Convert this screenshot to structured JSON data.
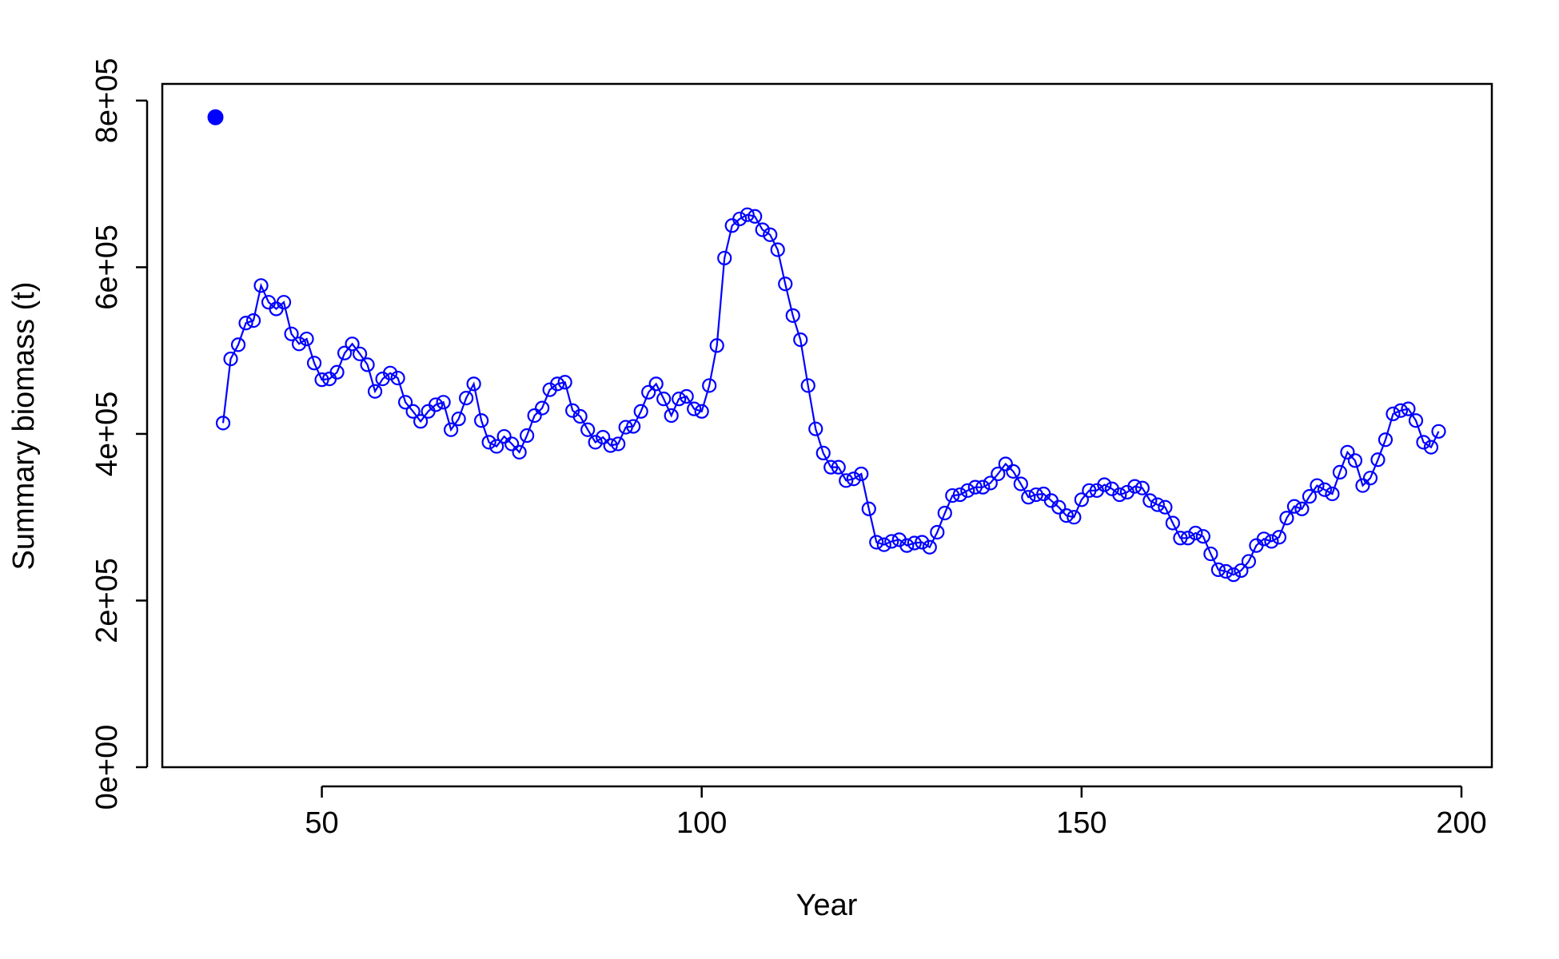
{
  "chart_data": {
    "type": "line",
    "xlabel": "Year",
    "ylabel": "Summary biomass (t)",
    "xlim": [
      29,
      204
    ],
    "ylim": [
      0,
      820000
    ],
    "x_ticks": [
      50,
      100,
      150,
      200
    ],
    "x_tick_labels": [
      "50",
      "100",
      "150",
      "200"
    ],
    "y_ticks": [
      0,
      200000,
      400000,
      600000,
      800000
    ],
    "y_tick_labels": [
      "0e+00",
      "2e+05",
      "4e+05",
      "6e+05",
      "8e+05"
    ],
    "grid": false,
    "legend": "none",
    "color": "#0000ff",
    "series": [
      {
        "marker": "filled-circle",
        "points": [
          [
            36,
            780000
          ]
        ]
      },
      {
        "marker": "open-circle",
        "line": true,
        "points": [
          [
            37,
            413000
          ],
          [
            38,
            490000
          ],
          [
            39,
            507000
          ],
          [
            40,
            533000
          ],
          [
            41,
            536000
          ],
          [
            42,
            578000
          ],
          [
            43,
            558000
          ],
          [
            44,
            550000
          ],
          [
            45,
            558000
          ],
          [
            46,
            520000
          ],
          [
            47,
            508000
          ],
          [
            48,
            514000
          ],
          [
            49,
            485000
          ],
          [
            50,
            465000
          ],
          [
            51,
            466000
          ],
          [
            52,
            474000
          ],
          [
            53,
            497000
          ],
          [
            54,
            508000
          ],
          [
            55,
            496000
          ],
          [
            56,
            483000
          ],
          [
            57,
            451000
          ],
          [
            58,
            466000
          ],
          [
            59,
            473000
          ],
          [
            60,
            467000
          ],
          [
            61,
            438000
          ],
          [
            62,
            427000
          ],
          [
            63,
            415000
          ],
          [
            64,
            427000
          ],
          [
            65,
            435000
          ],
          [
            66,
            438000
          ],
          [
            67,
            405000
          ],
          [
            68,
            418000
          ],
          [
            69,
            443000
          ],
          [
            70,
            460000
          ],
          [
            71,
            416000
          ],
          [
            72,
            390000
          ],
          [
            73,
            385000
          ],
          [
            74,
            397000
          ],
          [
            75,
            388000
          ],
          [
            76,
            378000
          ],
          [
            77,
            398000
          ],
          [
            78,
            422000
          ],
          [
            79,
            431000
          ],
          [
            80,
            453000
          ],
          [
            81,
            460000
          ],
          [
            82,
            462000
          ],
          [
            83,
            428000
          ],
          [
            84,
            421000
          ],
          [
            85,
            405000
          ],
          [
            86,
            390000
          ],
          [
            87,
            396000
          ],
          [
            88,
            386000
          ],
          [
            89,
            388000
          ],
          [
            90,
            408000
          ],
          [
            91,
            409000
          ],
          [
            92,
            427000
          ],
          [
            93,
            450000
          ],
          [
            94,
            460000
          ],
          [
            95,
            442000
          ],
          [
            96,
            422000
          ],
          [
            97,
            442000
          ],
          [
            98,
            445000
          ],
          [
            99,
            430000
          ],
          [
            100,
            427000
          ],
          [
            101,
            458000
          ],
          [
            102,
            506000
          ],
          [
            103,
            611000
          ],
          [
            104,
            650000
          ],
          [
            105,
            658000
          ],
          [
            106,
            663000
          ],
          [
            107,
            661000
          ],
          [
            108,
            645000
          ],
          [
            109,
            639000
          ],
          [
            110,
            621000
          ],
          [
            111,
            580000
          ],
          [
            112,
            542000
          ],
          [
            113,
            513000
          ],
          [
            114,
            458000
          ],
          [
            115,
            406000
          ],
          [
            116,
            377000
          ],
          [
            117,
            360000
          ],
          [
            118,
            360000
          ],
          [
            119,
            344000
          ],
          [
            120,
            346000
          ],
          [
            121,
            352000
          ],
          [
            122,
            310000
          ],
          [
            123,
            270000
          ],
          [
            124,
            267000
          ],
          [
            125,
            271000
          ],
          [
            126,
            273000
          ],
          [
            127,
            266000
          ],
          [
            128,
            269000
          ],
          [
            129,
            270000
          ],
          [
            130,
            264000
          ],
          [
            131,
            282000
          ],
          [
            132,
            305000
          ],
          [
            133,
            326000
          ],
          [
            134,
            327000
          ],
          [
            135,
            332000
          ],
          [
            136,
            336000
          ],
          [
            137,
            336000
          ],
          [
            138,
            341000
          ],
          [
            139,
            352000
          ],
          [
            140,
            364000
          ],
          [
            141,
            355000
          ],
          [
            142,
            340000
          ],
          [
            143,
            324000
          ],
          [
            144,
            327000
          ],
          [
            145,
            328000
          ],
          [
            146,
            320000
          ],
          [
            147,
            312000
          ],
          [
            148,
            302000
          ],
          [
            149,
            300000
          ],
          [
            150,
            321000
          ],
          [
            151,
            332000
          ],
          [
            152,
            332000
          ],
          [
            153,
            339000
          ],
          [
            154,
            334000
          ],
          [
            155,
            327000
          ],
          [
            156,
            330000
          ],
          [
            157,
            337000
          ],
          [
            158,
            335000
          ],
          [
            159,
            320000
          ],
          [
            160,
            315000
          ],
          [
            161,
            312000
          ],
          [
            162,
            293000
          ],
          [
            163,
            275000
          ],
          [
            164,
            275000
          ],
          [
            165,
            281000
          ],
          [
            166,
            277000
          ],
          [
            167,
            256000
          ],
          [
            168,
            237000
          ],
          [
            169,
            235000
          ],
          [
            170,
            231000
          ],
          [
            171,
            236000
          ],
          [
            172,
            247000
          ],
          [
            173,
            266000
          ],
          [
            174,
            274000
          ],
          [
            175,
            271000
          ],
          [
            176,
            276000
          ],
          [
            177,
            299000
          ],
          [
            178,
            313000
          ],
          [
            179,
            310000
          ],
          [
            180,
            325000
          ],
          [
            181,
            338000
          ],
          [
            182,
            333000
          ],
          [
            183,
            328000
          ],
          [
            184,
            354000
          ],
          [
            185,
            378000
          ],
          [
            186,
            368000
          ],
          [
            187,
            338000
          ],
          [
            188,
            347000
          ],
          [
            189,
            369000
          ],
          [
            190,
            393000
          ],
          [
            191,
            424000
          ],
          [
            192,
            428000
          ],
          [
            193,
            430000
          ],
          [
            194,
            416000
          ],
          [
            195,
            390000
          ],
          [
            196,
            384000
          ],
          [
            197,
            403000
          ]
        ]
      }
    ]
  }
}
